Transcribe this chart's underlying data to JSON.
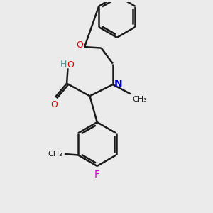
{
  "bg_color": "#ebebeb",
  "line_color": "#1a1a1a",
  "bond_width": 1.8,
  "atom_colors": {
    "O": "#e00000",
    "N": "#0000cc",
    "F": "#cc00cc",
    "H": "#4a9090",
    "C": "#1a1a1a"
  },
  "font_size": 9,
  "fig_size": [
    3.0,
    3.0
  ],
  "dpi": 100,
  "xlim": [
    0,
    10
  ],
  "ylim": [
    0,
    10
  ]
}
